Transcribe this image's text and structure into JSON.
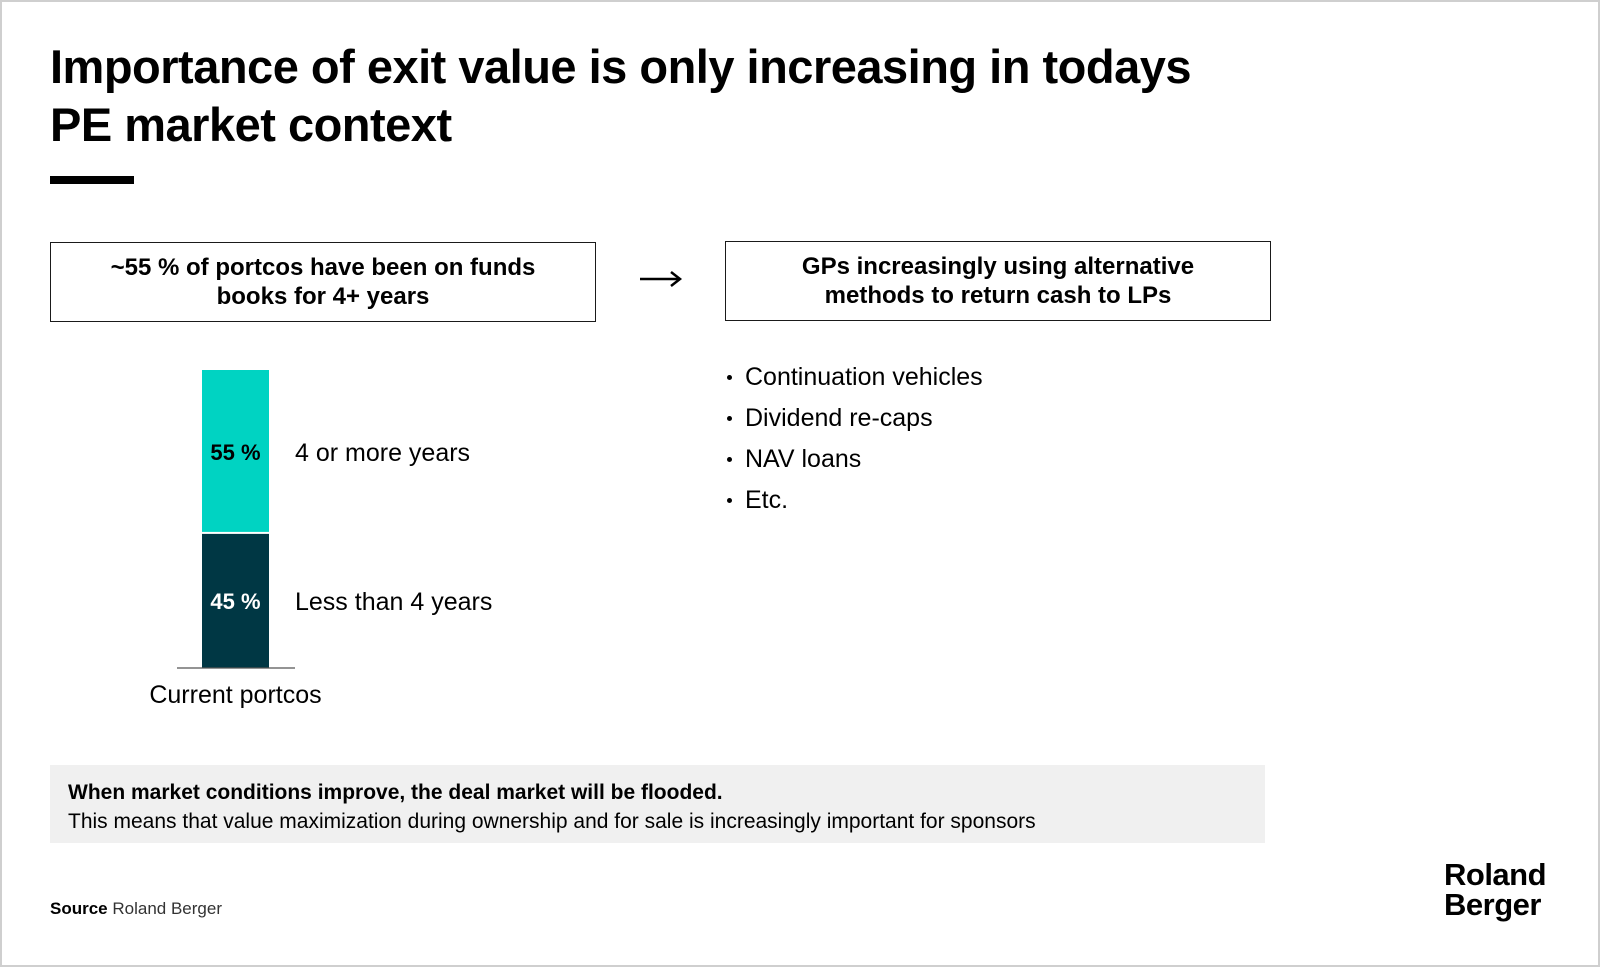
{
  "title": "Importance of exit value is only increasing in todays PE market context",
  "left_box": "~55 % of portcos have been on funds books for 4+ years",
  "right_box": "GPs increasingly using alternative methods to return cash to LPs",
  "arrow_icon": "arrow-right-icon",
  "bullets": [
    "Continuation vehicles",
    "Dividend re-caps",
    "NAV loans",
    "Etc."
  ],
  "callout": {
    "bold": "When market conditions improve, the deal market will be flooded.",
    "text": "This means that value maximization during ownership and for sale is increasingly important for sponsors"
  },
  "source": {
    "label": "Source",
    "value": "Roland Berger"
  },
  "logo": [
    "Roland",
    "Berger"
  ],
  "colors": {
    "teal": "#00d3c2",
    "dark_teal": "#003744",
    "callout_bg": "#f0f0f0"
  },
  "chart_data": {
    "type": "bar",
    "stacked": true,
    "categories": [
      "Current portcos"
    ],
    "series": [
      {
        "name": "Less than 4 years",
        "values": [
          45
        ],
        "label": "45 %",
        "color": "#003744"
      },
      {
        "name": "4 or more years",
        "values": [
          55
        ],
        "label": "55 %",
        "color": "#00d3c2"
      }
    ],
    "ylim": [
      0,
      100
    ],
    "grid": false,
    "legend": "labels right of segments"
  }
}
